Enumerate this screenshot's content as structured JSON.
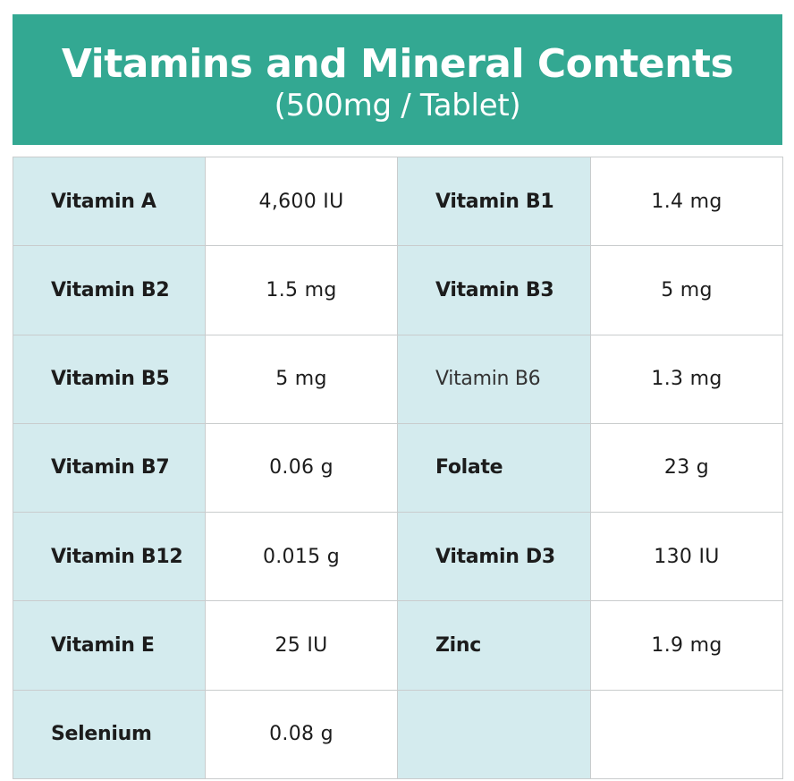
{
  "header": {
    "title": "Vitamins and Mineral Contents",
    "subtitle": "(500mg / Tablet)"
  },
  "colors": {
    "header_bg": "#33a892",
    "name_cell_bg": "#d4ebee",
    "value_cell_bg": "#ffffff",
    "border": "#c9cccd"
  },
  "table": {
    "rows": [
      [
        {
          "name": "Vitamin A",
          "value": "4,600 IU"
        },
        {
          "name": "Vitamin B1",
          "value": "1.4 mg"
        }
      ],
      [
        {
          "name": "Vitamin B2",
          "value": "1.5 mg"
        },
        {
          "name": "Vitamin B3",
          "value": "5 mg"
        }
      ],
      [
        {
          "name": "Vitamin B5",
          "value": "5 mg"
        },
        {
          "name": "Vitamin B6",
          "value": "1.3 mg"
        }
      ],
      [
        {
          "name": "Vitamin B7",
          "value": "0.06 g"
        },
        {
          "name": "Folate",
          "value": "23 g"
        }
      ],
      [
        {
          "name": "Vitamin B12",
          "value": "0.015 g"
        },
        {
          "name": "Vitamin D3",
          "value": "130 IU"
        }
      ],
      [
        {
          "name": "Vitamin E",
          "value": "25 IU"
        },
        {
          "name": "Zinc",
          "value": "1.9 mg"
        }
      ],
      [
        {
          "name": "Selenium",
          "value": "0.08 g"
        },
        {
          "name": "",
          "value": ""
        }
      ]
    ]
  }
}
